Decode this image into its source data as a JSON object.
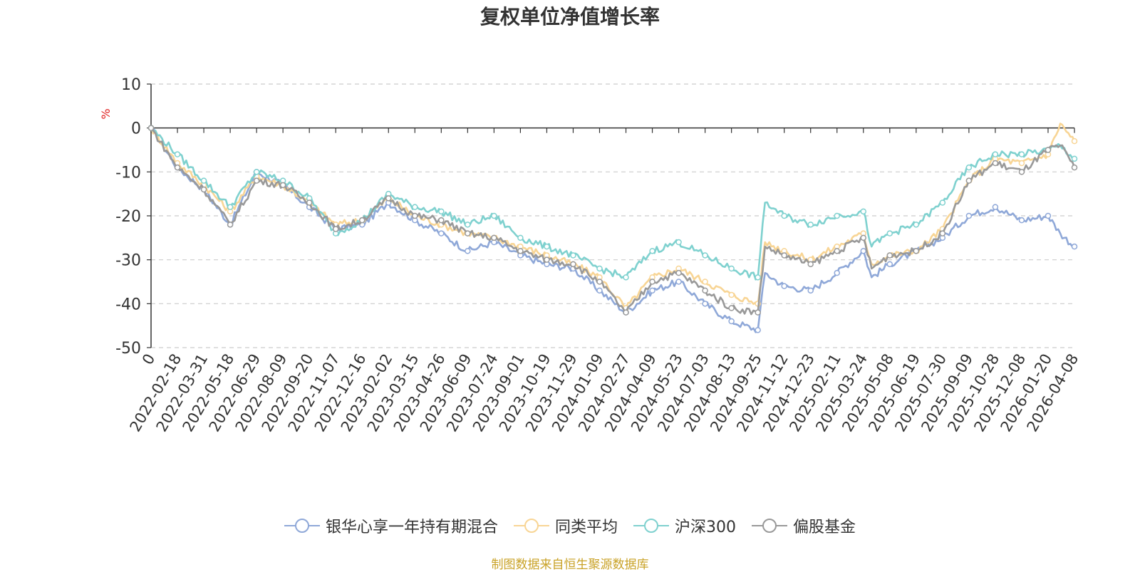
{
  "chart_data": {
    "type": "line",
    "title": "复权单位净值增长率",
    "ylabel": "%",
    "ylim": [
      -50,
      10
    ],
    "yticks": [
      10,
      0,
      -10,
      -20,
      -30,
      -40,
      -50
    ],
    "grid": true,
    "legend_position": "bottom",
    "x_tick_labels": [
      "0",
      "2022-02-18",
      "2022-03-31",
      "2022-05-18",
      "2022-06-29",
      "2022-08-09",
      "2022-09-20",
      "2022-11-07",
      "2022-12-16",
      "2023-02-02",
      "2023-03-15",
      "2023-04-26",
      "2023-06-09",
      "2023-07-24",
      "2023-09-01",
      "2023-10-19",
      "2023-11-29",
      "2024-01-09",
      "2024-02-27",
      "2024-04-09",
      "2024-05-23",
      "2024-07-03",
      "2024-08-13",
      "2024-09-25",
      "2024-11-12",
      "2024-12-23",
      "2025-02-11",
      "2025-03-24",
      "2025-05-08",
      "2025-06-19",
      "2025-07-30",
      "2025-09-09",
      "2025-10-28",
      "2025-12-08",
      "2026-01-20",
      "2026-04-08"
    ],
    "x": [
      "0",
      "2022-02-18",
      "2022-03-31",
      "2022-05-18",
      "2022-06-29",
      "2022-08-09",
      "2022-09-20",
      "2022-11-07",
      "2022-12-16",
      "2023-02-02",
      "2023-03-15",
      "2023-04-26",
      "2023-06-09",
      "2023-07-24",
      "2023-09-01",
      "2023-10-19",
      "2023-11-29",
      "2024-01-09",
      "2024-02-27",
      "2024-04-09",
      "2024-05-23",
      "2024-07-03",
      "2024-08-13",
      "2024-09-25",
      "2024-10-08",
      "2024-11-12",
      "2024-12-23",
      "2025-02-11",
      "2025-03-24",
      "2025-04-07",
      "2025-05-08",
      "2025-06-19",
      "2025-07-30",
      "2025-09-09",
      "2025-10-28",
      "2025-12-08",
      "2026-01-20",
      "2026-02-25",
      "2026-04-08"
    ],
    "series": [
      {
        "name": "银华心享一年持有期混合",
        "color": "#8fa8d8",
        "values": [
          0,
          -9,
          -14,
          -22,
          -10,
          -13,
          -18,
          -23,
          -22,
          -17,
          -21,
          -24,
          -28,
          -26,
          -29,
          -31,
          -32,
          -37,
          -42,
          -37,
          -35,
          -40,
          -44,
          -46,
          -33,
          -36,
          -37,
          -33,
          -28,
          -34,
          -31,
          -28,
          -25,
          -20,
          -18,
          -21,
          -20,
          -24,
          -27
        ]
      },
      {
        "name": "同类平均",
        "color": "#f8d595",
        "values": [
          0,
          -8,
          -13,
          -19,
          -11,
          -13,
          -17,
          -22,
          -21,
          -16,
          -20,
          -22,
          -24,
          -25,
          -27,
          -29,
          -31,
          -34,
          -41,
          -34,
          -32,
          -35,
          -38,
          -40,
          -26,
          -28,
          -30,
          -27,
          -24,
          -31,
          -29,
          -28,
          -23,
          -12,
          -7,
          -8,
          -6,
          1,
          -3
        ]
      },
      {
        "name": "沪深300",
        "color": "#7fd1cf",
        "values": [
          0,
          -6,
          -12,
          -18,
          -10,
          -12,
          -16,
          -24,
          -21,
          -15,
          -18,
          -19,
          -22,
          -20,
          -25,
          -27,
          -29,
          -32,
          -34,
          -28,
          -26,
          -29,
          -32,
          -34,
          -17,
          -20,
          -22,
          -20,
          -19,
          -27,
          -24,
          -22,
          -17,
          -9,
          -6,
          -6,
          -5,
          -4,
          -7
        ]
      },
      {
        "name": "偏股基金",
        "color": "#999999",
        "values": [
          0,
          -9,
          -14,
          -22,
          -12,
          -13,
          -17,
          -23,
          -21,
          -16,
          -20,
          -21,
          -24,
          -25,
          -28,
          -30,
          -31,
          -35,
          -42,
          -35,
          -33,
          -37,
          -41,
          -42,
          -27,
          -29,
          -31,
          -28,
          -25,
          -32,
          -29,
          -28,
          -24,
          -12,
          -8,
          -10,
          -5,
          -4,
          -9
        ]
      }
    ]
  },
  "footer": {
    "source": "制图数据来自恒生聚源数据库"
  }
}
